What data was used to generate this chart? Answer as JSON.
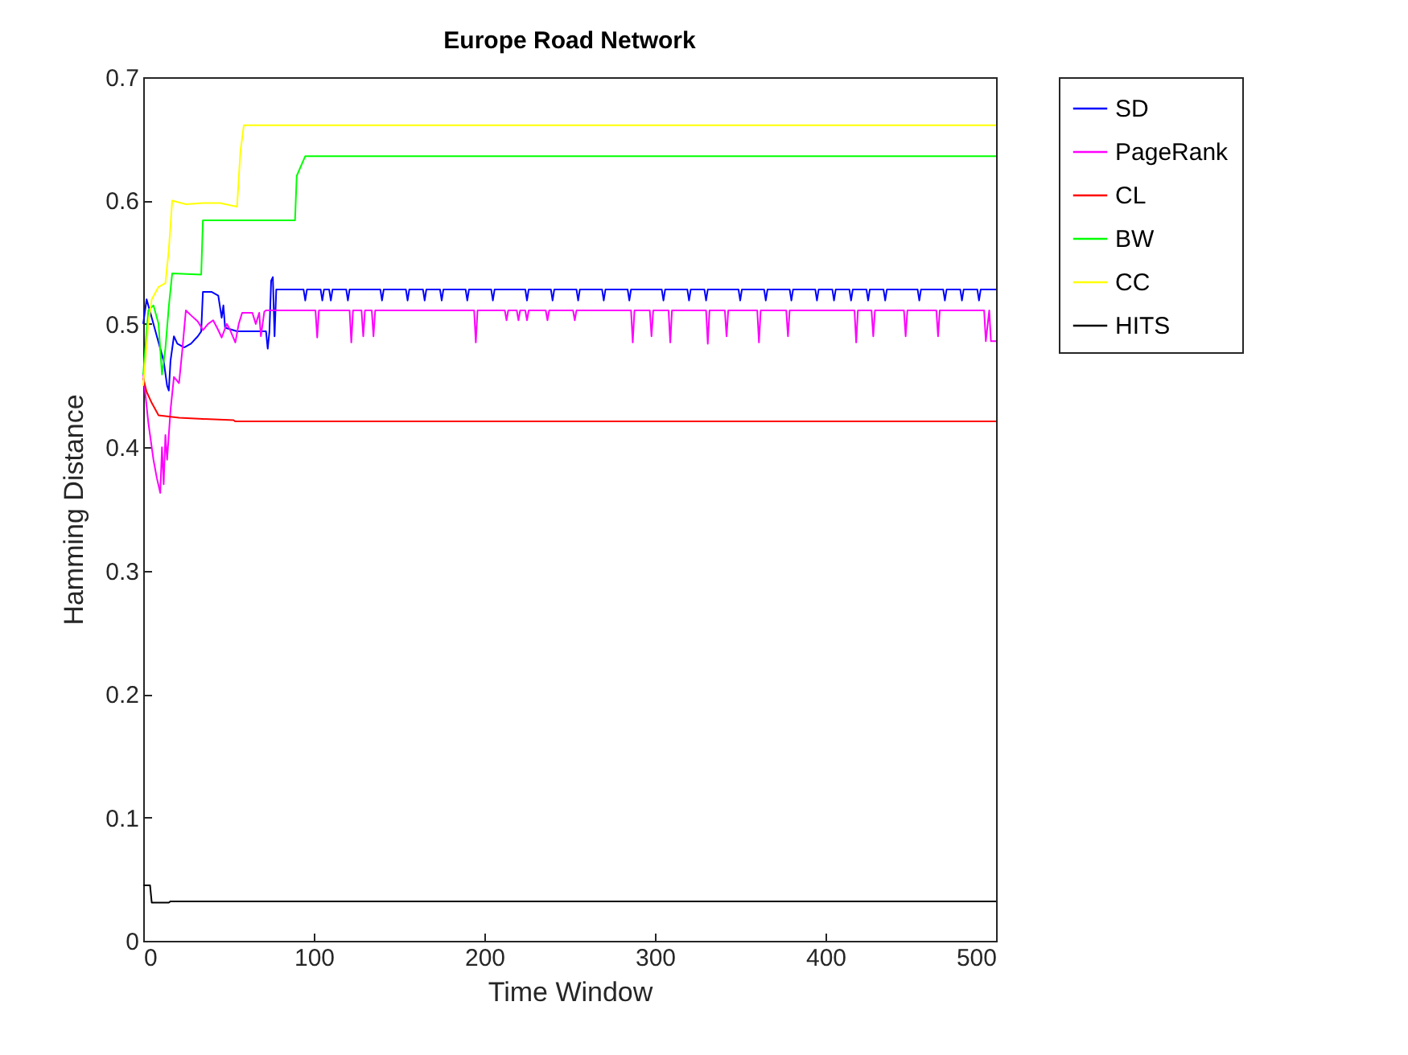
{
  "chart_data": {
    "type": "line",
    "title": "Europe Road Network",
    "xlabel": "Time Window",
    "ylabel": "Hamming Distance",
    "xlim": [
      0,
      500
    ],
    "xticks": [
      0,
      100,
      200,
      300,
      400,
      500
    ],
    "ylim": [
      0,
      0.7
    ],
    "yticks": [
      0,
      0.1,
      0.2,
      0.3,
      0.4,
      0.5,
      0.6,
      0.7
    ],
    "grid": false,
    "legend": "right",
    "line_style": "solid",
    "marker": "none",
    "series": [
      {
        "name": "SD",
        "color": "#0000ff",
        "x": [
          0,
          2,
          4,
          6,
          8,
          10,
          12,
          14,
          15,
          16,
          18,
          20,
          24,
          28,
          32,
          34,
          35,
          40,
          44,
          46,
          47,
          48,
          55,
          65,
          72,
          73,
          74,
          75,
          76,
          77,
          78,
          94,
          95,
          96,
          104,
          105,
          106,
          109,
          110,
          111,
          119,
          120,
          121,
          139,
          140,
          141,
          154,
          155,
          156,
          164,
          165,
          166,
          174,
          175,
          176,
          189,
          190,
          191,
          204,
          205,
          206,
          224,
          225,
          226,
          239,
          240,
          241,
          254,
          255,
          256,
          269,
          270,
          271,
          284,
          285,
          286,
          304,
          305,
          306,
          319,
          320,
          321,
          329,
          330,
          331,
          349,
          350,
          351,
          364,
          365,
          366,
          379,
          380,
          381,
          394,
          395,
          396,
          404,
          405,
          406,
          414,
          415,
          416,
          424,
          425,
          426,
          434,
          435,
          436,
          454,
          455,
          456,
          469,
          470,
          471,
          479,
          480,
          481,
          489,
          490,
          491,
          500
        ],
        "values": [
          0.5,
          0.52,
          0.51,
          0.5,
          0.49,
          0.48,
          0.47,
          0.45,
          0.446,
          0.47,
          0.49,
          0.484,
          0.481,
          0.484,
          0.49,
          0.494,
          0.526,
          0.526,
          0.523,
          0.505,
          0.515,
          0.497,
          0.494,
          0.494,
          0.494,
          0.48,
          0.494,
          0.535,
          0.538,
          0.49,
          0.528,
          0.528,
          0.519,
          0.528,
          0.528,
          0.519,
          0.528,
          0.528,
          0.519,
          0.528,
          0.528,
          0.519,
          0.528,
          0.528,
          0.519,
          0.528,
          0.528,
          0.519,
          0.528,
          0.528,
          0.519,
          0.528,
          0.528,
          0.519,
          0.528,
          0.528,
          0.519,
          0.528,
          0.528,
          0.519,
          0.528,
          0.528,
          0.519,
          0.528,
          0.528,
          0.519,
          0.528,
          0.528,
          0.519,
          0.528,
          0.528,
          0.519,
          0.528,
          0.528,
          0.519,
          0.528,
          0.528,
          0.519,
          0.528,
          0.528,
          0.519,
          0.528,
          0.528,
          0.519,
          0.528,
          0.528,
          0.519,
          0.528,
          0.528,
          0.519,
          0.528,
          0.528,
          0.519,
          0.528,
          0.528,
          0.519,
          0.528,
          0.528,
          0.519,
          0.528,
          0.528,
          0.519,
          0.528,
          0.528,
          0.519,
          0.528,
          0.528,
          0.519,
          0.528,
          0.528,
          0.519,
          0.528,
          0.528,
          0.519,
          0.528,
          0.528,
          0.519,
          0.528,
          0.528,
          0.519,
          0.528,
          0.528
        ]
      },
      {
        "name": "PageRank",
        "color": "#ff00ff",
        "x": [
          0,
          3,
          6,
          8,
          10,
          11,
          12,
          13,
          14,
          16,
          18,
          21,
          23,
          25,
          28,
          32,
          35,
          38,
          41,
          44,
          46,
          49,
          51,
          54,
          56,
          58,
          64,
          66,
          68,
          69,
          71,
          72,
          101,
          102,
          103,
          121,
          122,
          123,
          128,
          129,
          130,
          134,
          135,
          136,
          194,
          195,
          196,
          212,
          213,
          214,
          219,
          220,
          221,
          224,
          225,
          226,
          236,
          237,
          238,
          252,
          253,
          254,
          286,
          287,
          288,
          297,
          298,
          299,
          308,
          309,
          310,
          330,
          331,
          332,
          341,
          342,
          343,
          360,
          361,
          362,
          377,
          378,
          379,
          417,
          418,
          419,
          427,
          428,
          429,
          446,
          447,
          448,
          465,
          466,
          467,
          493,
          494,
          496,
          497,
          500
        ],
        "values": [
          0.46,
          0.42,
          0.39,
          0.375,
          0.363,
          0.4,
          0.37,
          0.41,
          0.39,
          0.43,
          0.457,
          0.452,
          0.48,
          0.511,
          0.507,
          0.502,
          0.495,
          0.5,
          0.503,
          0.495,
          0.489,
          0.5,
          0.495,
          0.485,
          0.5,
          0.509,
          0.509,
          0.5,
          0.509,
          0.49,
          0.51,
          0.511,
          0.511,
          0.489,
          0.511,
          0.511,
          0.485,
          0.511,
          0.511,
          0.49,
          0.511,
          0.511,
          0.49,
          0.511,
          0.511,
          0.485,
          0.511,
          0.511,
          0.503,
          0.511,
          0.511,
          0.503,
          0.511,
          0.511,
          0.503,
          0.511,
          0.511,
          0.503,
          0.511,
          0.511,
          0.503,
          0.511,
          0.511,
          0.485,
          0.511,
          0.511,
          0.49,
          0.511,
          0.511,
          0.485,
          0.511,
          0.511,
          0.484,
          0.511,
          0.511,
          0.49,
          0.511,
          0.511,
          0.485,
          0.511,
          0.511,
          0.49,
          0.511,
          0.511,
          0.485,
          0.511,
          0.511,
          0.49,
          0.511,
          0.511,
          0.49,
          0.511,
          0.511,
          0.49,
          0.511,
          0.511,
          0.486,
          0.511,
          0.486,
          0.486
        ]
      },
      {
        "name": "CL",
        "color": "#ff0000",
        "x": [
          0,
          2,
          5,
          9,
          15,
          21,
          35,
          53,
          54,
          500
        ],
        "values": [
          0.456,
          0.445,
          0.436,
          0.426,
          0.425,
          0.424,
          0.423,
          0.422,
          0.421,
          0.421
        ]
      },
      {
        "name": "BW",
        "color": "#00ff00",
        "x": [
          0,
          3,
          6,
          9,
          11,
          13,
          15,
          17,
          34,
          35,
          89,
          90,
          95,
          500
        ],
        "values": [
          0.459,
          0.511,
          0.515,
          0.5,
          0.459,
          0.48,
          0.514,
          0.541,
          0.54,
          0.584,
          0.584,
          0.62,
          0.636,
          0.636
        ]
      },
      {
        "name": "CC",
        "color": "#ffff00",
        "x": [
          0,
          3,
          5,
          9,
          13,
          15,
          17,
          25,
          35,
          45,
          55,
          57,
          59,
          500
        ],
        "values": [
          0.45,
          0.5,
          0.52,
          0.53,
          0.533,
          0.56,
          0.6,
          0.597,
          0.598,
          0.598,
          0.595,
          0.64,
          0.661,
          0.661
        ]
      },
      {
        "name": "HITS",
        "color": "#000000",
        "x": [
          0,
          4,
          5,
          15,
          16,
          500
        ],
        "values": [
          0.045,
          0.045,
          0.031,
          0.031,
          0.032,
          0.032
        ]
      }
    ]
  }
}
